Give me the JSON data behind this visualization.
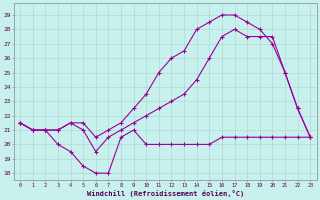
{
  "bg_color": "#c8f0ec",
  "grid_color": "#b0d8d4",
  "line_color": "#990099",
  "xlabel": "Windchill (Refroidissement éolien,°C)",
  "x_ticks": [
    0,
    1,
    2,
    3,
    4,
    5,
    6,
    7,
    8,
    9,
    10,
    11,
    12,
    13,
    14,
    15,
    16,
    17,
    18,
    19,
    20,
    21,
    22,
    23
  ],
  "y_ticks": [
    18,
    19,
    20,
    21,
    22,
    23,
    24,
    25,
    26,
    27,
    28,
    29
  ],
  "ylim": [
    17.5,
    29.8
  ],
  "xlim": [
    -0.5,
    23.5
  ],
  "line1_x": [
    0,
    1,
    2,
    3,
    4,
    5,
    6,
    7,
    8,
    9,
    10,
    11,
    12,
    13,
    14,
    15,
    16,
    17,
    18,
    19,
    20,
    21,
    22,
    23
  ],
  "line1_y": [
    21.5,
    21.0,
    21.0,
    20.0,
    19.5,
    18.5,
    18.0,
    18.0,
    20.5,
    21.0,
    20.0,
    20.0,
    20.0,
    20.0,
    20.0,
    20.0,
    20.5,
    20.5,
    20.5,
    20.5,
    20.5,
    20.5,
    20.5,
    20.5
  ],
  "line2_x": [
    0,
    1,
    2,
    3,
    4,
    5,
    6,
    7,
    8,
    9,
    10,
    11,
    12,
    13,
    14,
    15,
    16,
    17,
    18,
    19,
    20,
    21,
    22,
    23
  ],
  "line2_y": [
    21.5,
    21.0,
    21.0,
    21.0,
    21.5,
    21.0,
    19.5,
    20.5,
    21.0,
    21.5,
    22.0,
    22.5,
    23.0,
    23.5,
    24.5,
    26.0,
    27.5,
    28.0,
    27.5,
    27.5,
    27.5,
    25.0,
    22.5,
    20.5
  ],
  "line3_x": [
    0,
    1,
    2,
    3,
    4,
    5,
    6,
    7,
    8,
    9,
    10,
    11,
    12,
    13,
    14,
    15,
    16,
    17,
    18,
    19,
    20,
    21,
    22,
    23
  ],
  "line3_y": [
    21.5,
    21.0,
    21.0,
    21.0,
    21.5,
    21.5,
    20.5,
    21.0,
    21.5,
    22.5,
    23.5,
    25.0,
    26.0,
    26.5,
    28.0,
    28.5,
    29.0,
    29.0,
    28.5,
    28.0,
    27.0,
    25.0,
    22.5,
    20.5
  ]
}
